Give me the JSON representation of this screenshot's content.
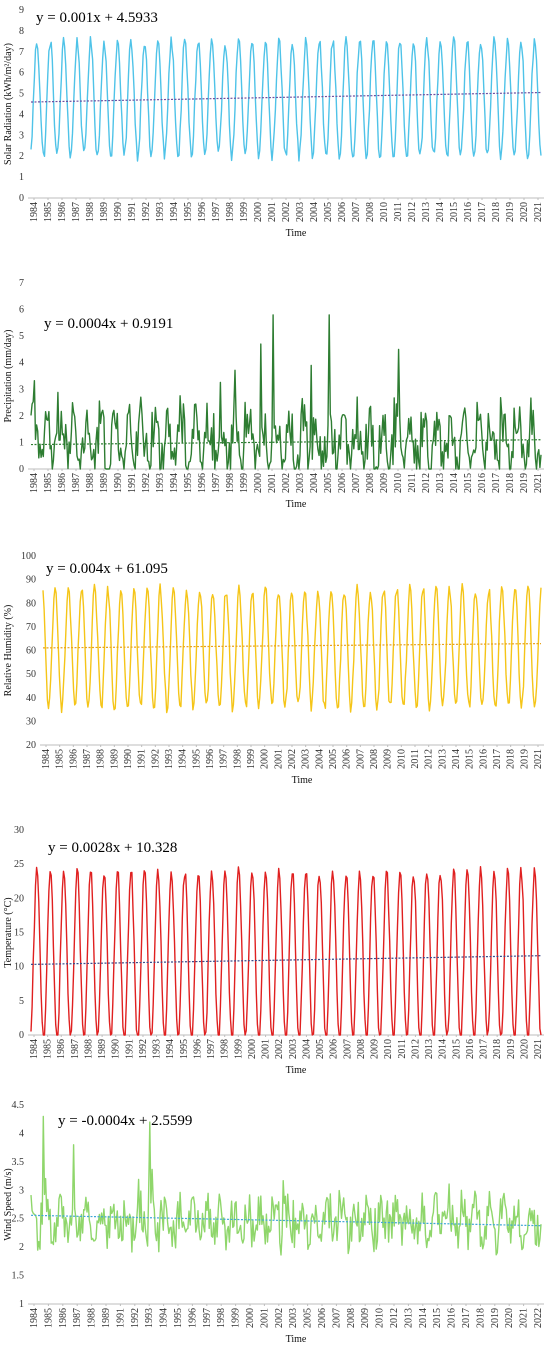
{
  "figure": {
    "panels_note": ""
  },
  "chart_data": [
    {
      "type": "line",
      "equation": "y = 0.001x + 4.5933",
      "xlabel": "Time",
      "ylabel": "Solar Radiation (kWh/m²/day)",
      "ylim": [
        0,
        9
      ],
      "yticks": [
        0,
        1,
        2,
        3,
        4,
        5,
        6,
        7,
        8,
        9
      ],
      "xticks": [
        "1984",
        "1985",
        "1986",
        "1987",
        "1988",
        "1989",
        "1990",
        "1991",
        "1992",
        "1993",
        "1994",
        "1995",
        "1996",
        "1997",
        "1998",
        "1999",
        "2000",
        "2001",
        "2002",
        "2003",
        "2004",
        "2005",
        "2006",
        "2007",
        "2008",
        "2010",
        "2011",
        "2012",
        "2013",
        "2014",
        "2015",
        "2016",
        "2017",
        "2018",
        "2019",
        "2020",
        "2021"
      ],
      "grid": false,
      "color": "#4fc3e8",
      "trend_color": "#6b4fa0",
      "trend": {
        "slope": 0.001,
        "intercept": 4.5933
      },
      "series_shape": {
        "kind": "seasonal",
        "base": 4.75,
        "amplitude": 2.75,
        "noise": 0.25,
        "start_phase": 0.0
      }
    },
    {
      "type": "line",
      "equation": "y = 0.0004x + 0.9191",
      "xlabel": "Time",
      "ylabel": "Precipitation (mm/day)",
      "ylim": [
        0,
        7
      ],
      "yticks": [
        0,
        1,
        2,
        3,
        4,
        5,
        6,
        7
      ],
      "xticks": [
        "1984",
        "1985",
        "1986",
        "1987",
        "1988",
        "1989",
        "1990",
        "1991",
        "1992",
        "1993",
        "1994",
        "1995",
        "1996",
        "1997",
        "1998",
        "1999",
        "2000",
        "2001",
        "2002",
        "2003",
        "2004",
        "2005",
        "2006",
        "2007",
        "2008",
        "2009",
        "2010",
        "2011",
        "2012",
        "2013",
        "2014",
        "2015",
        "2016",
        "2017",
        "2018",
        "2019",
        "2021"
      ],
      "grid": false,
      "color": "#2e7d32",
      "trend_color": "#2e7d32",
      "trend": {
        "slope": 0.0004,
        "intercept": 0.9191
      },
      "series_shape": {
        "kind": "noisy",
        "base": 1.0,
        "amplitude": 0.9,
        "noise": 0.9,
        "start_phase": 0.3
      },
      "peaks": [
        {
          "x": 205,
          "y": 4.7
        },
        {
          "x": 216,
          "y": 5.8
        },
        {
          "x": 266,
          "y": 5.8
        },
        {
          "x": 328,
          "y": 4.5
        },
        {
          "x": 250,
          "y": 3.9
        }
      ]
    },
    {
      "type": "line",
      "equation": "y = 0.004x + 61.095",
      "xlabel": "Time",
      "ylabel": "Relative Humidity (%)",
      "ylim": [
        20,
        100
      ],
      "yticks": [
        20,
        30,
        40,
        50,
        60,
        70,
        80,
        90,
        100
      ],
      "xticks": [
        "1984",
        "1985",
        "1986",
        "1987",
        "1988",
        "1989",
        "1990",
        "1991",
        "1992",
        "1993",
        "1994",
        "1995",
        "1996",
        "1997",
        "1998",
        "1999",
        "2000",
        "2001",
        "2002",
        "2003",
        "2004",
        "2005",
        "2006",
        "2007",
        "2008",
        "2009",
        "2010",
        "2011",
        "2012",
        "2013",
        "2014",
        "2015",
        "2016",
        "2017",
        "2018",
        "2019",
        "2021"
      ],
      "grid": false,
      "color": "#f5c518",
      "trend_color": "#e8a21a",
      "trend": {
        "slope": 0.004,
        "intercept": 61.095
      },
      "series_shape": {
        "kind": "seasonal",
        "base": 61,
        "amplitude": 25,
        "noise": 2.5,
        "start_phase": 3.14159
      }
    },
    {
      "type": "line",
      "equation": "y = 0.0028x + 10.328",
      "xlabel": "Time",
      "ylabel": "Temperature (°C)",
      "ylim": [
        0,
        30
      ],
      "yticks": [
        0,
        5,
        10,
        15,
        20,
        25,
        30
      ],
      "xticks": [
        "1984",
        "1985",
        "1986",
        "1987",
        "1988",
        "1989",
        "1990",
        "1991",
        "1992",
        "1993",
        "1994",
        "1995",
        "1996",
        "1997",
        "1998",
        "1999",
        "2000",
        "2001",
        "2002",
        "2003",
        "2004",
        "2005",
        "2006",
        "2007",
        "2008",
        "2009",
        "2010",
        "2011",
        "2012",
        "2013",
        "2014",
        "2015",
        "2016",
        "2017",
        "2018",
        "2019",
        "2020",
        "2021"
      ],
      "grid": false,
      "color": "#e02020",
      "trend_color": "#3a4a8a",
      "trend": {
        "slope": 0.0028,
        "intercept": 10.328
      },
      "series_shape": {
        "kind": "seasonal",
        "base": 11.5,
        "amplitude": 12.5,
        "noise": 0.8,
        "start_phase": 0.0,
        "clip_min": 0
      }
    },
    {
      "type": "line",
      "equation": "y = -0.0004x + 2.5599",
      "xlabel": "Time",
      "ylabel": "Wind Speed (m/s)",
      "ylim": [
        1,
        4.5
      ],
      "yticks": [
        1,
        1.5,
        2,
        2.5,
        3,
        3.5,
        4,
        4.5
      ],
      "xticks": [
        "1984",
        "1985",
        "1986",
        "1987",
        "1988",
        "1989",
        "1991",
        "1992",
        "1993",
        "1994",
        "1995",
        "1996",
        "1997",
        "1998",
        "1999",
        "2000",
        "2001",
        "2002",
        "2003",
        "2005",
        "2006",
        "2007",
        "2008",
        "2009",
        "2010",
        "2012",
        "2013",
        "2014",
        "2015",
        "2016",
        "2017",
        "2018",
        "2019",
        "2020",
        "2021",
        "2022"
      ],
      "grid": false,
      "color": "#8fd66b",
      "trend_color": "#3fa7d6",
      "trend": {
        "slope": -0.0004,
        "intercept": 2.5599
      },
      "series_shape": {
        "kind": "noisy",
        "base": 2.45,
        "amplitude": 0.25,
        "noise": 0.35,
        "start_phase": 1.0
      },
      "peaks": [
        {
          "x": 11,
          "y": 4.3
        },
        {
          "x": 38,
          "y": 3.8
        },
        {
          "x": 106,
          "y": 4.2
        }
      ]
    }
  ]
}
